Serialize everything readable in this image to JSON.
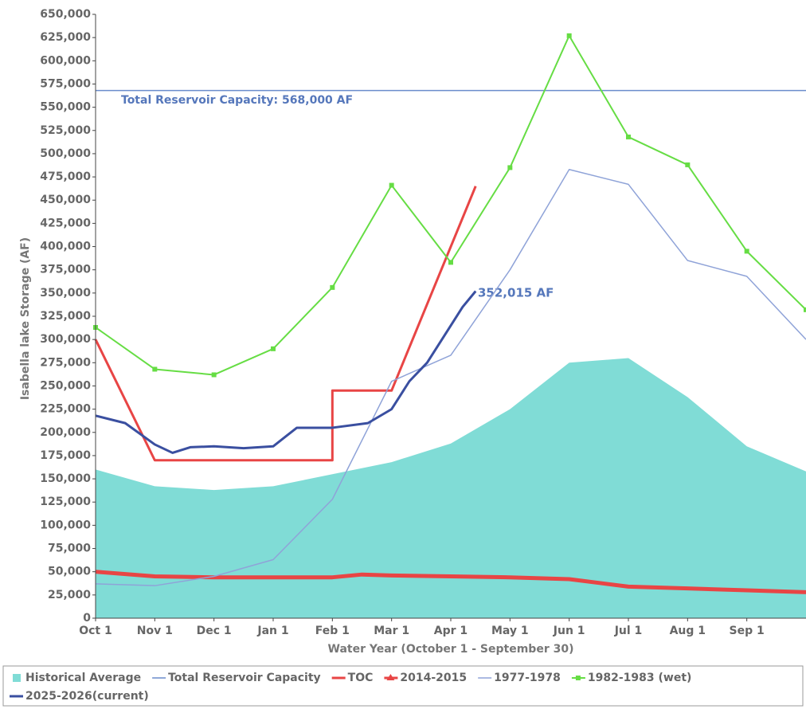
{
  "chart_data": {
    "type": "line",
    "ylabel": "Isabella lake Storage (AF)",
    "xlabel": "Water Year (October 1 - September 30)",
    "annotations": [
      "Total Reservoir Capacity: 568,000 AF",
      "352,015 AF"
    ],
    "xlim": [
      0,
      12
    ],
    "xticks": [
      {
        "value": 0,
        "label": "Oct 1"
      },
      {
        "value": 1,
        "label": "Nov 1"
      },
      {
        "value": 2,
        "label": "Dec 1"
      },
      {
        "value": 3,
        "label": "Jan 1"
      },
      {
        "value": 4,
        "label": "Feb 1"
      },
      {
        "value": 5,
        "label": "Mar 1"
      },
      {
        "value": 6,
        "label": "Apr 1"
      },
      {
        "value": 7,
        "label": "May 1"
      },
      {
        "value": 8,
        "label": "Jun 1"
      },
      {
        "value": 9,
        "label": "Jul 1"
      },
      {
        "value": 10,
        "label": "Aug 1"
      },
      {
        "value": 11,
        "label": "Sep 1"
      }
    ],
    "ylim": [
      0,
      650000
    ],
    "yticks": [
      0,
      {
        "value": 25000,
        "label": "25,000"
      },
      {
        "value": 50000,
        "label": "50,000"
      },
      {
        "value": 75000,
        "label": "75,000"
      },
      {
        "value": 100000,
        "label": "100,000"
      },
      {
        "value": 125000,
        "label": "125,000"
      },
      {
        "value": 150000,
        "label": "150,000"
      },
      {
        "value": 175000,
        "label": "175,000"
      },
      {
        "value": 200000,
        "label": "200,000"
      },
      {
        "value": 225000,
        "label": "225,000"
      },
      {
        "value": 250000,
        "label": "250,000"
      },
      {
        "value": 275000,
        "label": "275,000"
      },
      {
        "value": 300000,
        "label": "300,000"
      },
      {
        "value": 325000,
        "label": "325,000"
      },
      {
        "value": 350000,
        "label": "350,000"
      },
      {
        "value": 375000,
        "label": "375,000"
      },
      {
        "value": 400000,
        "label": "400,000"
      },
      {
        "value": 425000,
        "label": "425,000"
      },
      {
        "value": 450000,
        "label": "450,000"
      },
      {
        "value": 475000,
        "label": "475,000"
      },
      {
        "value": 500000,
        "label": "500,000"
      },
      {
        "value": 525000,
        "label": "525,000"
      },
      {
        "value": 550000,
        "label": "550,000"
      },
      {
        "value": 575000,
        "label": "575,000"
      },
      {
        "value": 600000,
        "label": "600,000"
      },
      {
        "value": 625000,
        "label": "625,000"
      },
      {
        "value": 650000,
        "label": "650,000"
      }
    ],
    "series": [
      {
        "name": "Historical Average",
        "color": "#80dcd6",
        "style": "area",
        "x": [
          0,
          1,
          2,
          3,
          4,
          5,
          6,
          7,
          8,
          9,
          10,
          11,
          12
        ],
        "values": [
          160000,
          142000,
          138000,
          142000,
          155000,
          168000,
          188000,
          225000,
          275000,
          280000,
          238000,
          185000,
          158000
        ]
      },
      {
        "name": "Total Reservoir Capacity",
        "color": "#6a8ccc",
        "style": "line",
        "width": 1.5,
        "x": [
          0,
          12
        ],
        "values": [
          568000,
          568000
        ]
      },
      {
        "name": "TOC",
        "color": "#e84545",
        "style": "line",
        "width": 3,
        "x": [
          0,
          1,
          4,
          4,
          5,
          6.42
        ],
        "values": [
          300000,
          170000,
          170000,
          245000,
          245000,
          465000
        ]
      },
      {
        "name": "2014-2015",
        "color": "#e84545",
        "style": "line",
        "width": 5,
        "marker": "triangle",
        "x": [
          0,
          1,
          2,
          3,
          4,
          4.5,
          5,
          6,
          7,
          8,
          8.5,
          9,
          10,
          11,
          12
        ],
        "values": [
          50000,
          45000,
          44000,
          44000,
          44000,
          47000,
          46000,
          45000,
          44000,
          42000,
          38000,
          34000,
          32000,
          30000,
          28000
        ]
      },
      {
        "name": "1977-1978",
        "color": "#8fa3d8",
        "style": "line",
        "width": 1.5,
        "x": [
          0,
          1,
          2,
          3,
          4,
          5,
          6,
          7,
          8,
          9,
          10,
          11,
          12
        ],
        "values": [
          37000,
          35000,
          45000,
          63000,
          128000,
          255000,
          283000,
          375000,
          483000,
          467000,
          385000,
          368000,
          300000
        ]
      },
      {
        "name": "1982-1983 (wet)",
        "color": "#66dd44",
        "style": "line",
        "width": 2,
        "marker": "square",
        "x": [
          0,
          1,
          2,
          3,
          4,
          5,
          6,
          7,
          8,
          9,
          10,
          11,
          12
        ],
        "values": [
          313000,
          268000,
          262000,
          290000,
          356000,
          466000,
          383000,
          485000,
          627000,
          518000,
          488000,
          395000,
          332000
        ]
      },
      {
        "name": "2025-2026(current)",
        "color": "#3a4fa0",
        "style": "line",
        "width": 3,
        "x": [
          0,
          0.5,
          1,
          1.3,
          1.6,
          2,
          2.5,
          3,
          3.2,
          3.4,
          4,
          4.6,
          5,
          5.3,
          5.6,
          6,
          6.2,
          6.42
        ],
        "values": [
          218000,
          210000,
          187000,
          178000,
          184000,
          185000,
          183000,
          185000,
          195000,
          205000,
          205000,
          210000,
          225000,
          255000,
          275000,
          315000,
          335000,
          352015
        ]
      }
    ]
  }
}
